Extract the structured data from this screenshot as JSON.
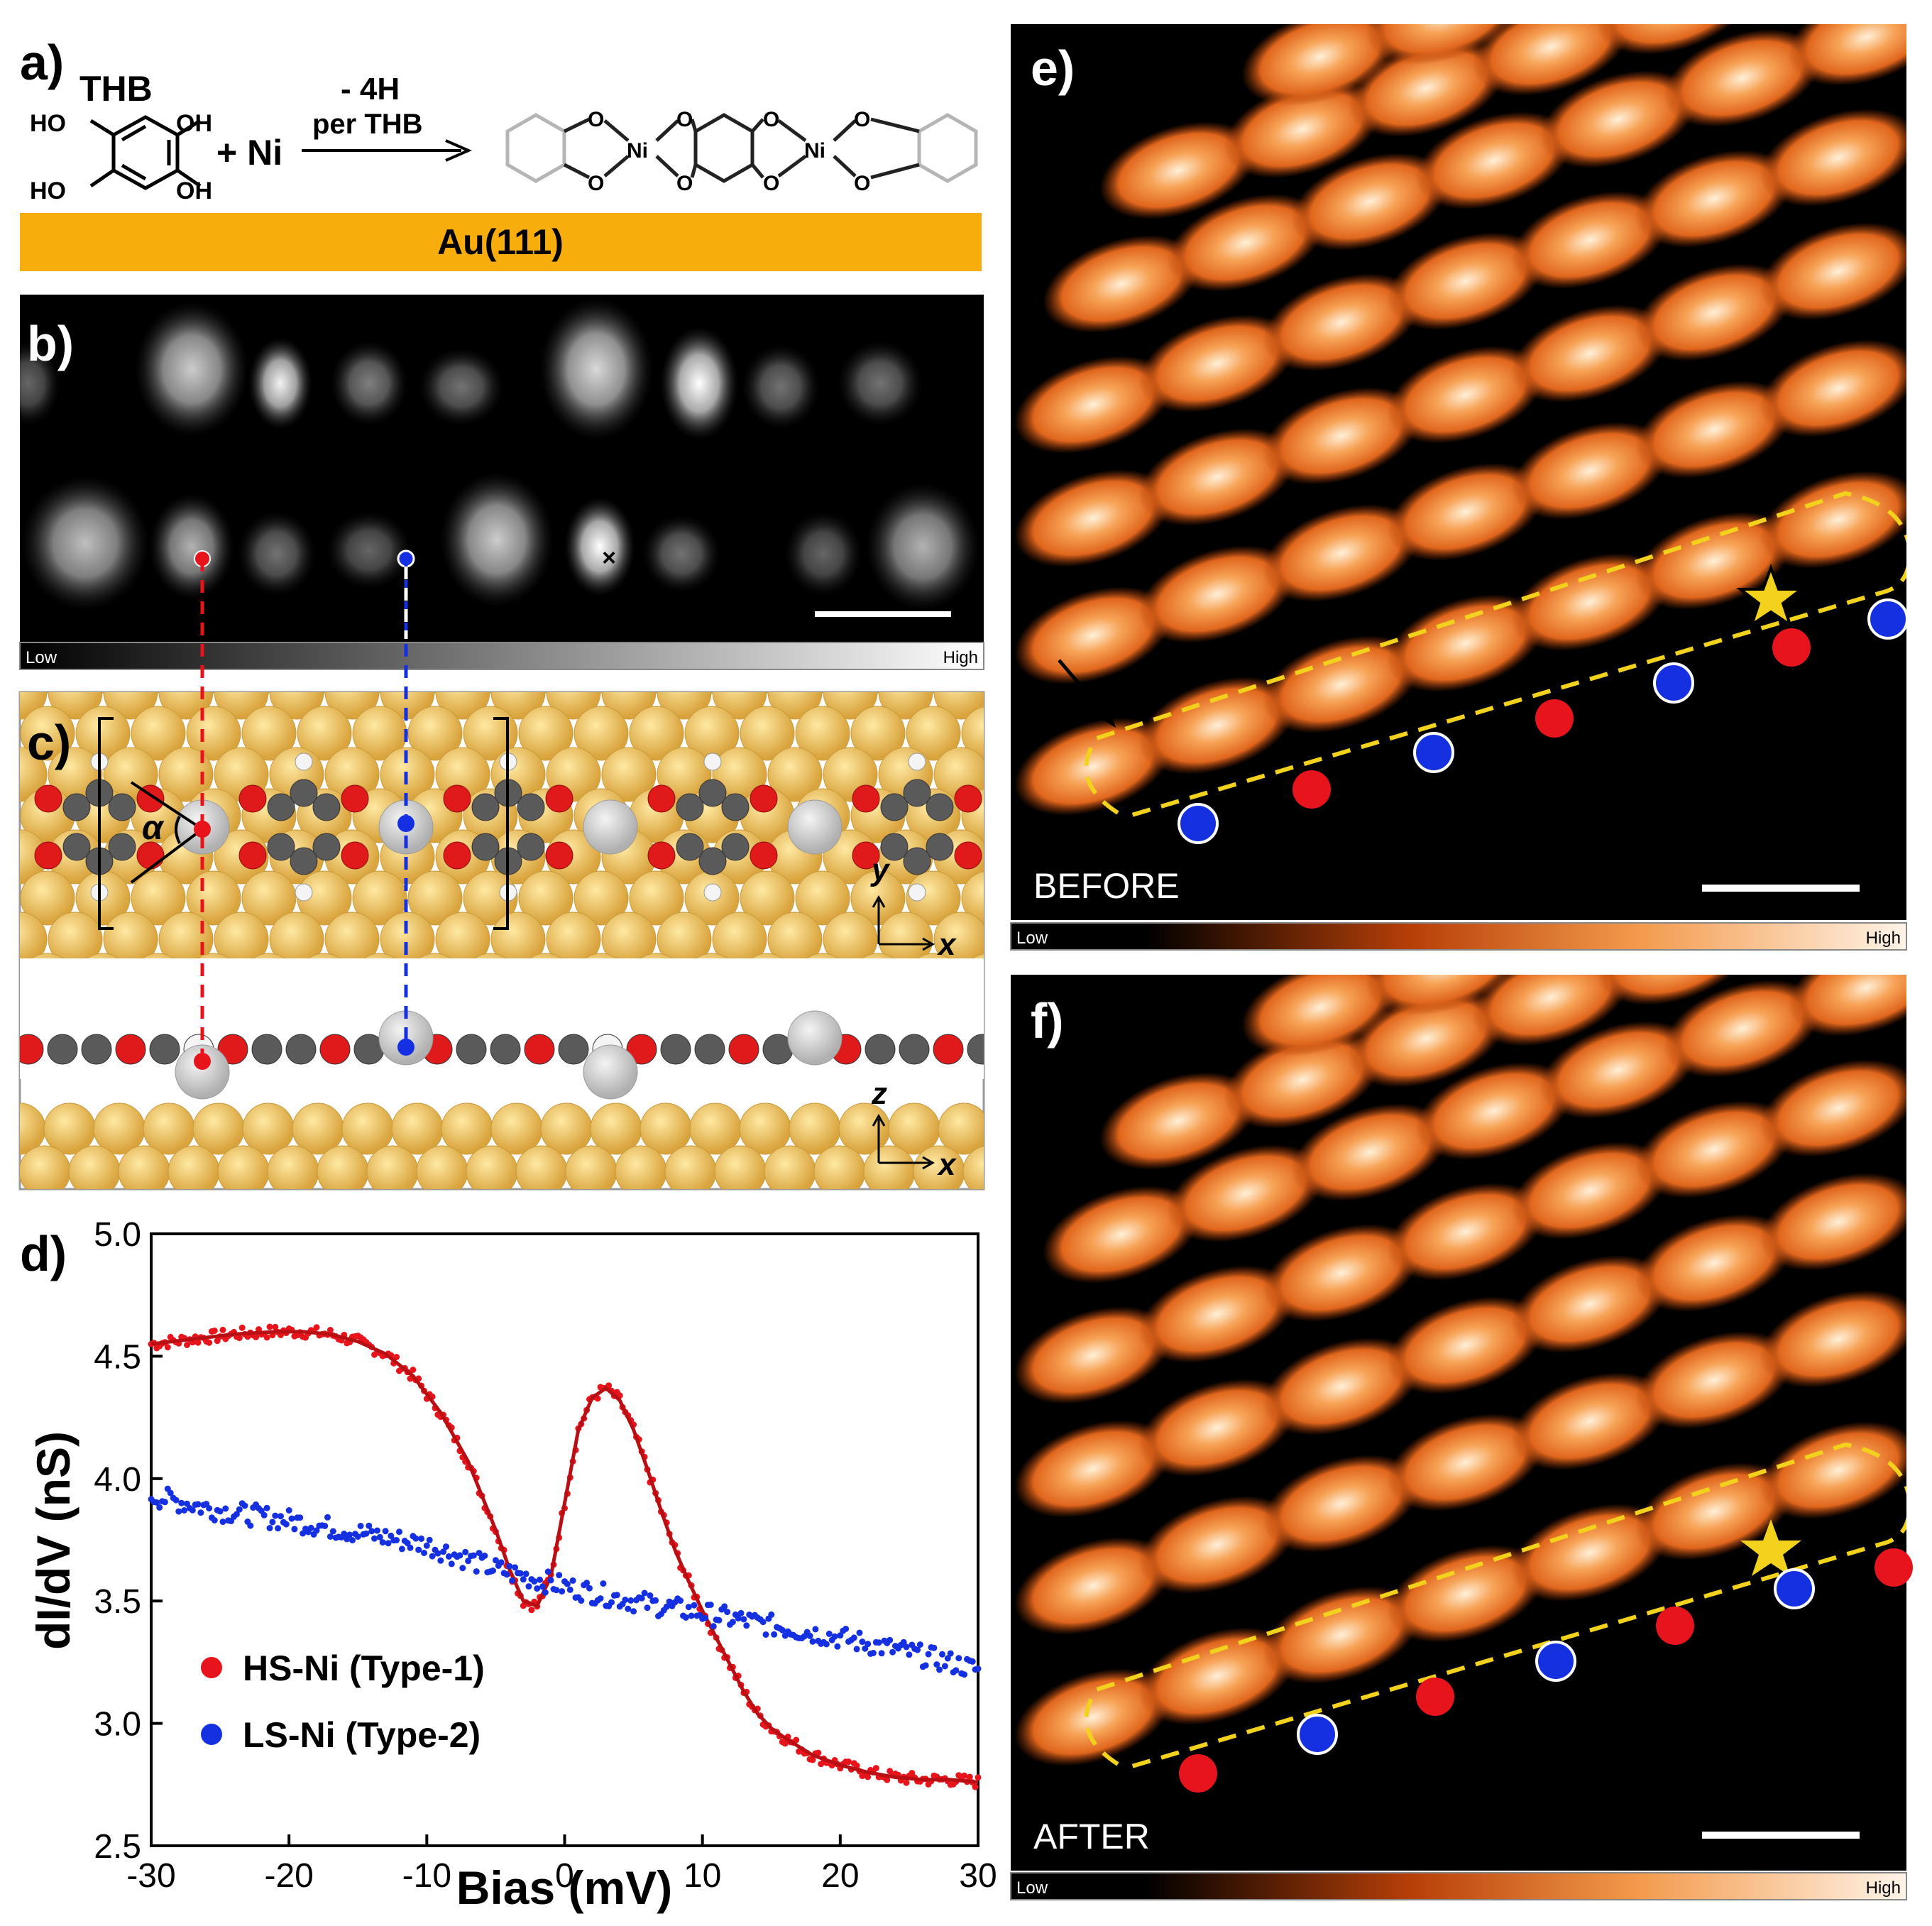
{
  "panel_labels": {
    "a": "a)",
    "b": "b)",
    "c": "c)",
    "d": "d)",
    "e": "e)",
    "f": "f)"
  },
  "scheme": {
    "reactant": "THB",
    "substituent": "HO",
    "substituent_right": "OH",
    "plus_metal": "+ Ni",
    "arrow_top": "- 4H",
    "arrow_bottom": "per THB",
    "metal": "Ni",
    "oxygen": "O",
    "substrate": "Au(111)"
  },
  "colorbars": {
    "low": "Low",
    "high": "High"
  },
  "panel_b": {
    "marker": "×"
  },
  "panel_c": {
    "angle_symbol": "α",
    "axis_y": "y",
    "axis_x": "x",
    "axis_z": "z"
  },
  "panel_e": {
    "caption": "BEFORE"
  },
  "panel_f": {
    "caption": "AFTER"
  },
  "colors": {
    "hs": "#e8141b",
    "ls": "#1530e0",
    "gold": "#f7ad0c",
    "star": "#f2d21c",
    "gold_atom": "#e6b54c",
    "carbon": "#5a5a5a",
    "oxygen": "#e01a1a",
    "nickel": "#c8c8c8"
  },
  "chart_data": {
    "type": "scatter",
    "xlabel": "Bias (mV)",
    "ylabel": "dI/dV (nS)",
    "xlim": [
      -30,
      30
    ],
    "ylim": [
      2.5,
      5.0
    ],
    "xticks": [
      "-30",
      "-20",
      "-10",
      "0",
      "10",
      "20",
      "30"
    ],
    "yticks": [
      "2.5",
      "3.0",
      "3.5",
      "4.0",
      "4.5",
      "5.0"
    ],
    "legend_position": "bottom-left",
    "series": [
      {
        "name": "HS-Ni (Type-1)",
        "color": "#e8141b",
        "fit": true,
        "x": [
          -30,
          -27,
          -24,
          -21,
          -19,
          -17,
          -15,
          -13,
          -11,
          -9,
          -7,
          -6,
          -5,
          -4,
          -3,
          -2,
          -1,
          0,
          1,
          2,
          3,
          4,
          5,
          6,
          7,
          8,
          9,
          10,
          11,
          12,
          13,
          14,
          15,
          16,
          18,
          20,
          22,
          24,
          26,
          28,
          30
        ],
        "y": [
          4.55,
          4.57,
          4.59,
          4.6,
          4.6,
          4.59,
          4.56,
          4.51,
          4.42,
          4.27,
          4.07,
          3.93,
          3.79,
          3.63,
          3.5,
          3.48,
          3.6,
          3.9,
          4.2,
          4.33,
          4.37,
          4.32,
          4.2,
          4.04,
          3.87,
          3.71,
          3.58,
          3.46,
          3.35,
          3.24,
          3.13,
          3.04,
          2.98,
          2.94,
          2.87,
          2.83,
          2.8,
          2.78,
          2.77,
          2.77,
          2.76
        ]
      },
      {
        "name": "LS-Ni (Type-2)",
        "color": "#1530e0",
        "fit": false,
        "x": [
          -30,
          -25,
          -20,
          -15,
          -10,
          -5,
          0,
          5,
          10,
          15,
          20,
          25,
          30
        ],
        "y": [
          3.93,
          3.87,
          3.83,
          3.78,
          3.73,
          3.63,
          3.56,
          3.5,
          3.45,
          3.4,
          3.35,
          3.29,
          3.22
        ]
      }
    ]
  }
}
